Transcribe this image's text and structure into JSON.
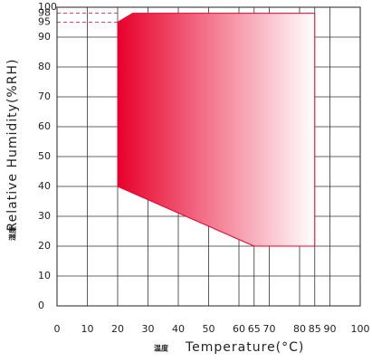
{
  "chart_data": {
    "type": "area",
    "x_label": "Temperature(°C)",
    "x_label_cn": "温度",
    "y_label": "Relative Humidity(%RH)",
    "y_label_cn": "湿度",
    "x": [
      20,
      20,
      25,
      85,
      85,
      65
    ],
    "values": [
      40,
      95,
      98,
      98,
      20,
      20
    ],
    "color": "#e8002a",
    "xlim": [
      0,
      100
    ],
    "xticks": [
      0,
      10,
      20,
      30,
      40,
      50,
      60,
      65,
      70,
      80,
      85,
      90,
      100
    ],
    "ylim": [
      0,
      100
    ],
    "yticks": [
      0,
      10,
      20,
      30,
      40,
      50,
      60,
      70,
      80,
      90,
      95,
      98,
      100
    ],
    "dashed_yticks": [
      95,
      98
    ],
    "grid": true
  }
}
